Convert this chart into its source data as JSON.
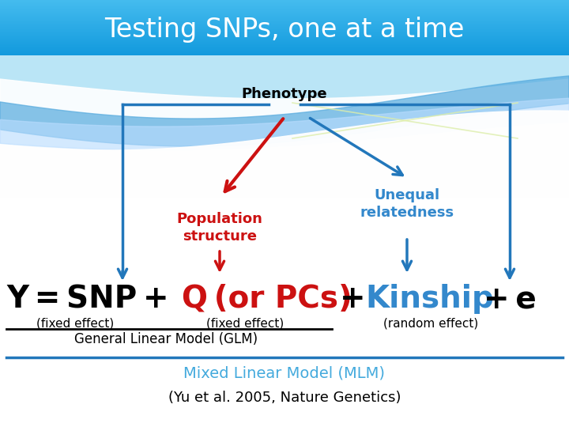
{
  "title": "Testing SNPs, one at a time",
  "title_color": "#FFFFFF",
  "title_bg_top": "#55BBEE",
  "title_bg_bot": "#33AADD",
  "bg_color": "#FFFFFF",
  "phenotype_label": "Phenotype",
  "pop_structure_label": "Population\nstructure",
  "unequal_label": "Unequal\nrelatedness",
  "pop_structure_color": "#CC1111",
  "unequal_color": "#3388CC",
  "arrow_blue": "#2277BB",
  "arrow_red": "#CC1111",
  "fixed1": "(fixed effect)",
  "fixed2": "(fixed effect)",
  "random": "(random effect)",
  "glm_text": "General Linear Model (GLM)",
  "mlm_text": "Mixed Linear Model (MLM)",
  "citation": "(Yu et al. 2005, Nature Genetics)",
  "mlm_color": "#44AADD",
  "line_color": "#2277BB",
  "black": "#000000"
}
